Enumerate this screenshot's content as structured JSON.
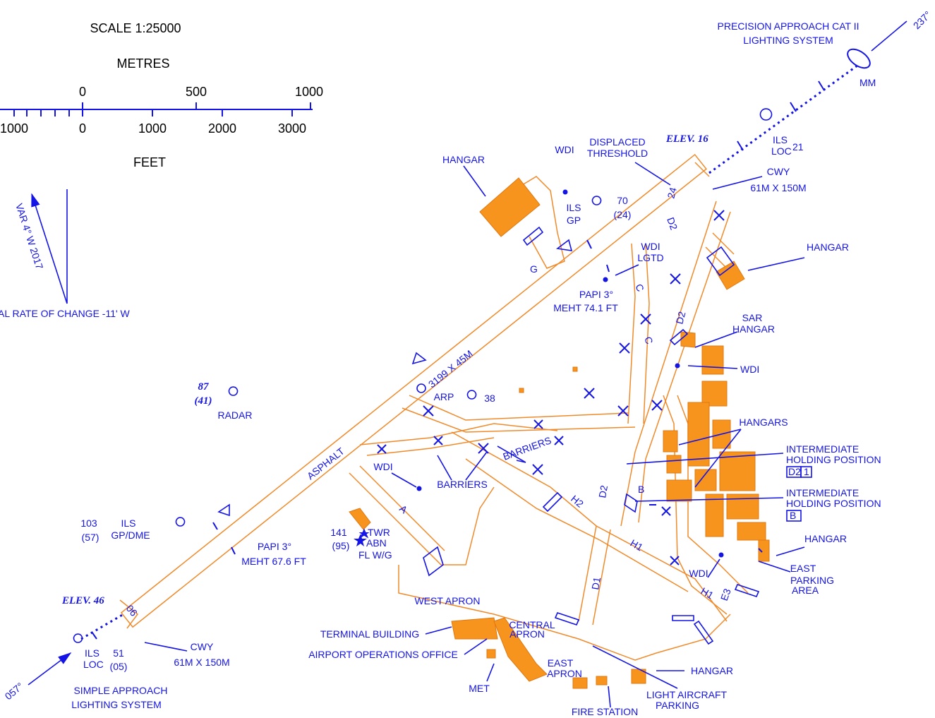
{
  "scale": {
    "title": "SCALE 1:25000",
    "metres_label": "METRES",
    "metres_ticks": [
      "0",
      "500",
      "1000"
    ],
    "feet_ticks": [
      "1000",
      "0",
      "1000",
      "2000",
      "3000"
    ],
    "feet_label": "FEET"
  },
  "north": {
    "variation": "VAR 4° W 2017",
    "rate": "AL RATE OF CHANGE -11' W"
  },
  "runway": {
    "dimensions": "3199 X 45M",
    "surface": "ASPHALT",
    "designator_ne": "24",
    "designator_sw": "06",
    "elev_ne": "ELEV. 16",
    "elev_sw": "ELEV. 46"
  },
  "approach_ne": {
    "lines": [
      "PRECISION APPROACH CAT II",
      "LIGHTING SYSTEM"
    ],
    "bearing": "237°",
    "marker": "MM",
    "ils": "ILS",
    "loc": "LOC",
    "loc_value": "21",
    "displaced": [
      "DISPLACED",
      "THRESHOLD"
    ],
    "cwy": [
      "CWY",
      "61M X 150M"
    ]
  },
  "approach_sw": {
    "lines": [
      "SIMPLE APPROACH",
      "LIGHTING SYSTEM"
    ],
    "bearing": "057°",
    "ils": "ILS",
    "loc": "LOC",
    "elev": [
      "51",
      "(05)"
    ],
    "cwy": [
      "CWY",
      "61M X 150M"
    ]
  },
  "ils_gp": {
    "ils": "ILS",
    "gp": "GP",
    "elev": [
      "70",
      "(24)"
    ]
  },
  "gp_dme": {
    "elev": [
      "103",
      "(57)"
    ],
    "ils": "ILS",
    "gp": "GP/DME"
  },
  "radar": {
    "elev": [
      "87",
      "(41)"
    ],
    "label": "RADAR"
  },
  "arp": {
    "label": "ARP",
    "elev": "38"
  },
  "papi_ne": [
    "PAPI 3°",
    "MEHT 74.1 FT"
  ],
  "papi_sw": [
    "PAPI 3°",
    "MEHT 67.6 FT"
  ],
  "tower": {
    "elev": [
      "141",
      "(95)"
    ],
    "lines": [
      "TWR",
      "ABN",
      "FL W/G"
    ]
  },
  "wdi": {
    "ne": "WDI",
    "lgtd": [
      "WDI",
      "LGTD"
    ],
    "east": "WDI",
    "west": "WDI",
    "south_east": "WDI"
  },
  "buildings": {
    "hangar_nw": "HANGAR",
    "hangar_ne": "HANGAR",
    "sar": [
      "SAR",
      "HANGAR"
    ],
    "hangars": "HANGARS",
    "hangar_se": "HANGAR",
    "hangar_s": "HANGAR",
    "east_parking": [
      "EAST",
      "PARKING",
      "AREA"
    ],
    "west_apron": "WEST APRON",
    "central_apron": [
      "CENTRAL",
      "APRON"
    ],
    "terminal": "TERMINAL BUILDING",
    "ops": "AIRPORT OPERATIONS OFFICE",
    "east_apron": [
      "EAST",
      "APRON"
    ],
    "met": "MET",
    "light_aircraft": [
      "LIGHT AIRCRAFT",
      "PARKING"
    ],
    "fire": "FIRE STATION"
  },
  "holding": {
    "first": [
      "INTERMEDIATE",
      "HOLDING POSITION"
    ],
    "first_ids": [
      "D2",
      "1"
    ],
    "second": [
      "INTERMEDIATE",
      "HOLDING POSITION"
    ],
    "second_id": "B"
  },
  "barriers": [
    "BARRIERS",
    "BARRIERS"
  ],
  "taxiways": {
    "g": "G",
    "c1": "C",
    "c2": "C",
    "d2_top": "D2",
    "d2_mid": "D2",
    "d2_low": "D2",
    "b": "B",
    "a": "A",
    "h2": "H2",
    "h1_a": "H1",
    "h1_b": "H1",
    "e3": "E3",
    "d1": "D1"
  }
}
